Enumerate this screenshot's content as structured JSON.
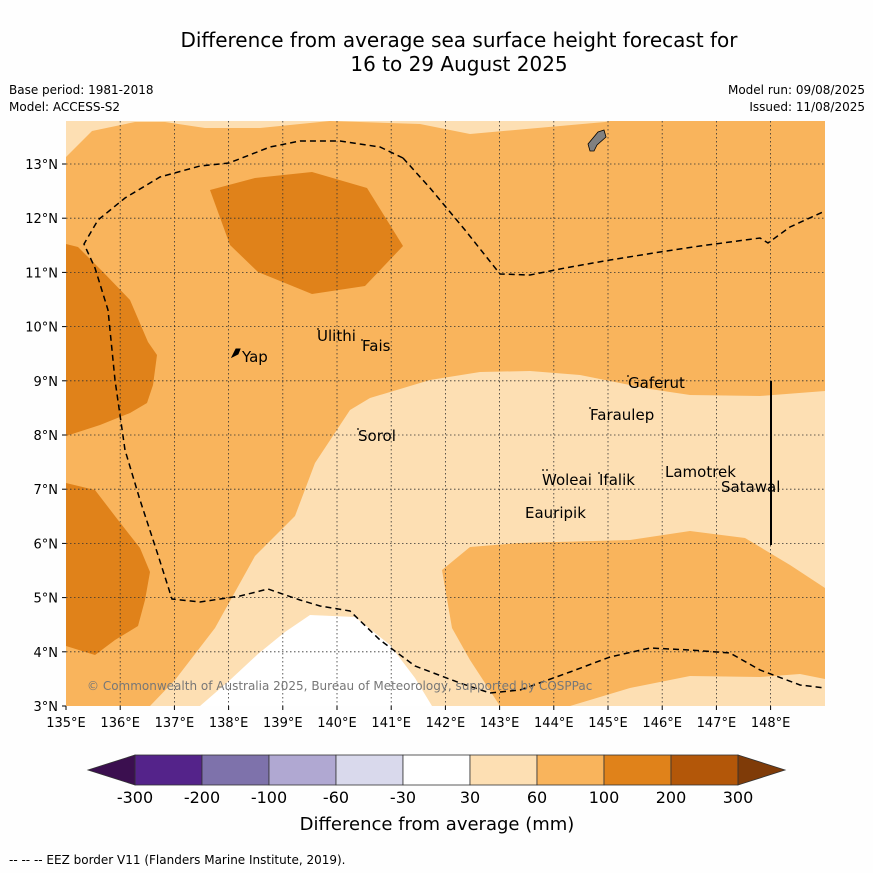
{
  "title": {
    "line1": "Difference from average sea surface height forecast for",
    "line2": "16 to 29 August 2025"
  },
  "meta": {
    "base_period": "Base period: 1981-2018",
    "model": "Model: ACCESS-S2",
    "model_run": "Model run: 09/08/2025",
    "issued": "Issued: 11/08/2025"
  },
  "lon_ticks": [
    "135°E",
    "136°E",
    "137°E",
    "138°E",
    "139°E",
    "140°E",
    "141°E",
    "142°E",
    "143°E",
    "144°E",
    "145°E",
    "146°E",
    "147°E",
    "148°E"
  ],
  "lat_ticks": [
    "3°N",
    "4°N",
    "5°N",
    "6°N",
    "7°N",
    "8°N",
    "9°N",
    "10°N",
    "11°N",
    "12°N",
    "13°N"
  ],
  "places": [
    {
      "name": "Yap"
    },
    {
      "name": "Ulithi"
    },
    {
      "name": "Fais"
    },
    {
      "name": "Sorol"
    },
    {
      "name": "Gaferut"
    },
    {
      "name": "Faraulep"
    },
    {
      "name": "Woleai"
    },
    {
      "name": "Ifalik"
    },
    {
      "name": "Lamotrek"
    },
    {
      "name": "Satawal"
    },
    {
      "name": "Eauripik"
    }
  ],
  "copyright": "© Commonwealth of Australia 2025, Bureau of Meteorology, supported by COSPPac",
  "colorbar": {
    "title": "Difference from average (mm)",
    "ticks": [
      "-300",
      "-200",
      "-100",
      "-60",
      "-30",
      "30",
      "60",
      "100",
      "200",
      "300"
    ],
    "colors": {
      "lt_m300": "#3b0f4f",
      "m300_m200": "#54238a",
      "m200_m100": "#7e72ab",
      "m100_m60": "#b0a8d2",
      "m60_m30": "#d9d9ec",
      "m30_30": "#ffffff",
      "p30_60": "#fddfb3",
      "p60_100": "#f9b45c",
      "p100_200": "#e0821a",
      "p200_300": "#b35709",
      "gt_300": "#7f3b08"
    }
  },
  "footnote": "--  --  -- EEZ border V11 (Flanders Marine Institute, 2019)."
}
